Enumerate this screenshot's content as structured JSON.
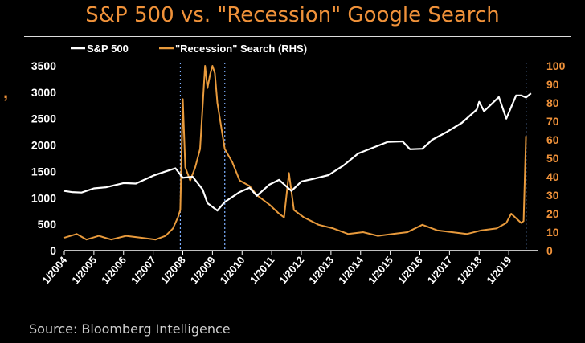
{
  "page": {
    "title": "S&P 500 vs. \"Recession\" Google Search",
    "source": "Source: Bloomberg Intelligence",
    "edge_mark": ","
  },
  "colors": {
    "background": "#000000",
    "title": "#f0923a",
    "sp500": "#ffffff",
    "search": "#e89a3c",
    "recession_marker": "#7fb0ff"
  },
  "chart_data": {
    "type": "line",
    "legend": "top-left",
    "x_range": [
      "2004-01",
      "2019-12"
    ],
    "x_ticks": [
      "1/2004",
      "1/2005",
      "1/2006",
      "1/2007",
      "1/2008",
      "1/2009",
      "1/2010",
      "1/2011",
      "1/2012",
      "1/2013",
      "1/2014",
      "1/2015",
      "1/2016",
      "1/2017",
      "1/2018",
      "1/2019"
    ],
    "left_axis": {
      "min": 0,
      "max": 3500,
      "ticks": [
        0,
        500,
        1000,
        1500,
        2000,
        2500,
        3000,
        3500
      ]
    },
    "right_axis": {
      "min": 0,
      "max": 100,
      "ticks": [
        0,
        10,
        20,
        30,
        40,
        50,
        60,
        70,
        80,
        90,
        100
      ]
    },
    "grid": false,
    "markers": [
      "2007-12",
      "2009-06",
      "2019-08"
    ],
    "series": [
      {
        "name": "S&P 500",
        "axis": "left",
        "points": [
          [
            "2004-01",
            1130
          ],
          [
            "2004-04",
            1110
          ],
          [
            "2004-08",
            1100
          ],
          [
            "2005-01",
            1180
          ],
          [
            "2005-06",
            1200
          ],
          [
            "2006-01",
            1280
          ],
          [
            "2006-06",
            1270
          ],
          [
            "2007-01",
            1420
          ],
          [
            "2007-06",
            1500
          ],
          [
            "2007-10",
            1560
          ],
          [
            "2008-01",
            1380
          ],
          [
            "2008-05",
            1400
          ],
          [
            "2008-09",
            1160
          ],
          [
            "2008-11",
            900
          ],
          [
            "2009-03",
            760
          ],
          [
            "2009-06",
            920
          ],
          [
            "2009-12",
            1110
          ],
          [
            "2010-04",
            1190
          ],
          [
            "2010-07",
            1040
          ],
          [
            "2010-12",
            1250
          ],
          [
            "2011-04",
            1340
          ],
          [
            "2011-09",
            1130
          ],
          [
            "2012-01",
            1310
          ],
          [
            "2012-06",
            1360
          ],
          [
            "2012-12",
            1430
          ],
          [
            "2013-06",
            1610
          ],
          [
            "2013-12",
            1840
          ],
          [
            "2014-06",
            1950
          ],
          [
            "2014-12",
            2060
          ],
          [
            "2015-06",
            2070
          ],
          [
            "2015-09",
            1920
          ],
          [
            "2016-02",
            1930
          ],
          [
            "2016-06",
            2100
          ],
          [
            "2016-12",
            2250
          ],
          [
            "2017-06",
            2420
          ],
          [
            "2017-12",
            2670
          ],
          [
            "2018-01",
            2820
          ],
          [
            "2018-03",
            2640
          ],
          [
            "2018-09",
            2910
          ],
          [
            "2018-12",
            2500
          ],
          [
            "2019-04",
            2940
          ],
          [
            "2019-06",
            2940
          ],
          [
            "2019-08",
            2900
          ],
          [
            "2019-10",
            2980
          ]
        ]
      },
      {
        "name": "\"Recession\" Search (RHS)",
        "axis": "right",
        "points": [
          [
            "2004-01",
            7
          ],
          [
            "2004-06",
            9
          ],
          [
            "2004-10",
            6
          ],
          [
            "2005-03",
            8
          ],
          [
            "2005-08",
            6
          ],
          [
            "2006-02",
            8
          ],
          [
            "2006-08",
            7
          ],
          [
            "2007-02",
            6
          ],
          [
            "2007-06",
            8
          ],
          [
            "2007-09",
            12
          ],
          [
            "2007-11",
            18
          ],
          [
            "2007-12",
            22
          ],
          [
            "2008-01",
            82
          ],
          [
            "2008-02",
            45
          ],
          [
            "2008-04",
            38
          ],
          [
            "2008-06",
            45
          ],
          [
            "2008-08",
            55
          ],
          [
            "2008-10",
            100
          ],
          [
            "2008-11",
            88
          ],
          [
            "2008-12",
            95
          ],
          [
            "2009-01",
            100
          ],
          [
            "2009-02",
            96
          ],
          [
            "2009-03",
            80
          ],
          [
            "2009-06",
            55
          ],
          [
            "2009-09",
            48
          ],
          [
            "2009-12",
            38
          ],
          [
            "2010-04",
            35
          ],
          [
            "2010-07",
            30
          ],
          [
            "2010-12",
            25
          ],
          [
            "2011-04",
            20
          ],
          [
            "2011-06",
            18
          ],
          [
            "2011-08",
            42
          ],
          [
            "2011-10",
            22
          ],
          [
            "2012-02",
            18
          ],
          [
            "2012-08",
            14
          ],
          [
            "2013-02",
            12
          ],
          [
            "2013-08",
            9
          ],
          [
            "2014-02",
            10
          ],
          [
            "2014-08",
            8
          ],
          [
            "2015-02",
            9
          ],
          [
            "2015-08",
            10
          ],
          [
            "2016-02",
            14
          ],
          [
            "2016-08",
            11
          ],
          [
            "2017-02",
            10
          ],
          [
            "2017-08",
            9
          ],
          [
            "2018-02",
            11
          ],
          [
            "2018-08",
            12
          ],
          [
            "2018-12",
            15
          ],
          [
            "2019-02",
            20
          ],
          [
            "2019-06",
            15
          ],
          [
            "2019-07",
            16
          ],
          [
            "2019-08",
            62
          ]
        ]
      }
    ]
  }
}
